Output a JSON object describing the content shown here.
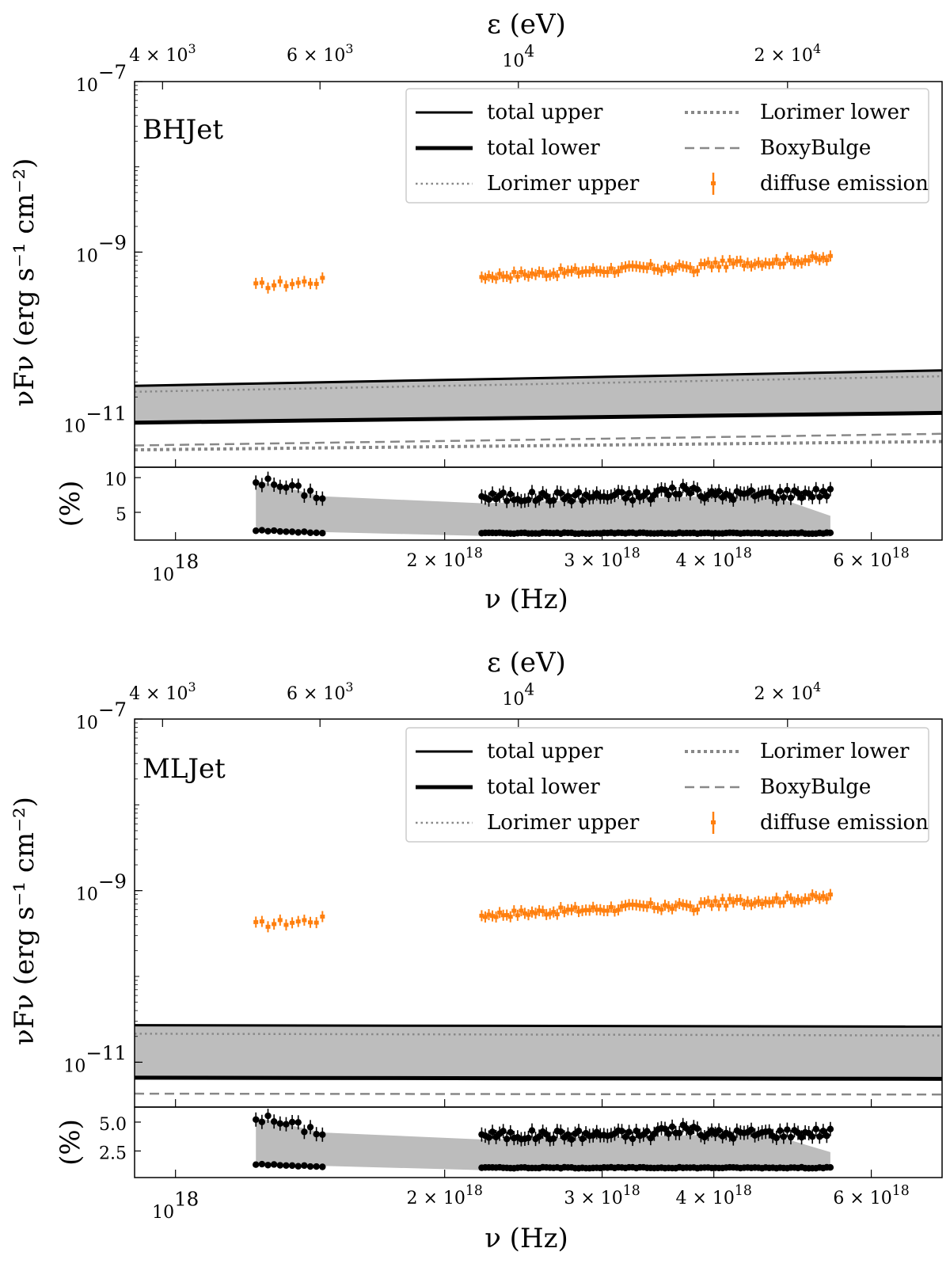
{
  "figure": {
    "top_axis_label": "ε (eV)",
    "bottom_axis_label": "ν (Hz)",
    "left_axis_label": "νFν (erg s⁻¹ cm⁻²)",
    "ratio_axis_label": "(%)",
    "colors": {
      "diffuse": "#ff7f0e",
      "band": "#bdbdbd",
      "lorimer": "#888888",
      "boxy": "#888888",
      "ratio_band": "#bcbcbc",
      "ratio_points": "#000000"
    }
  },
  "legend": {
    "total_upper": "total upper",
    "total_lower": "total lower",
    "lorimer_upper": "Lorimer upper",
    "lorimer_lower": "Lorimer lower",
    "boxybulge": "BoxyBulge",
    "diffuse": "diffuse emission"
  },
  "chart_data": [
    {
      "type": "line",
      "title": "BHJet",
      "xlabel": "ν (Hz)",
      "ylabel": "νFν (erg s⁻¹ cm⁻²)",
      "x_scale": "log",
      "y_scale": "log",
      "xlim": [
        9e+17,
        7.2e+18
      ],
      "ylim": [
        3e-12,
        1e-07
      ],
      "x_ticks": [
        {
          "value": 1e+18,
          "label": "10^18"
        },
        {
          "value": 2e+18,
          "label": "2 × 10^18"
        },
        {
          "value": 3e+18,
          "label": "3 × 10^18"
        },
        {
          "value": 4e+18,
          "label": "4 × 10^18"
        },
        {
          "value": 6e+18,
          "label": "6 × 10^18"
        }
      ],
      "top_ticks": [
        {
          "value_eV": 4000,
          "label": "4 × 10^3"
        },
        {
          "value_eV": 6000,
          "label": "6 × 10^3"
        },
        {
          "value_eV": 10000,
          "label": "10^4"
        },
        {
          "value_eV": 20000,
          "label": "2 × 10^4"
        }
      ],
      "y_ticks": [
        {
          "value": 1e-07,
          "label": "10^-7"
        },
        {
          "value": 1e-09,
          "label": "10^-9"
        },
        {
          "value": 1e-11,
          "label": "10^-11"
        }
      ],
      "series": [
        {
          "name": "total upper",
          "x": [
            9e+17,
            7.2e+18
          ],
          "y": [
            2.7e-11,
            4.1e-11
          ]
        },
        {
          "name": "total lower",
          "x": [
            9e+17,
            7.2e+18
          ],
          "y": [
            1e-11,
            1.3e-11
          ]
        },
        {
          "name": "Lorimer upper",
          "x": [
            9e+17,
            7.2e+18
          ],
          "y": [
            2.3e-11,
            3.5e-11
          ]
        },
        {
          "name": "Lorimer lower",
          "x": [
            9e+17,
            7.2e+18
          ],
          "y": [
            4.8e-12,
            6e-12
          ]
        },
        {
          "name": "BoxyBulge",
          "x": [
            9e+17,
            7.2e+18
          ],
          "y": [
            5.4e-12,
            7.4e-12
          ]
        }
      ],
      "diffuse_emission": {
        "seg1": {
          "x_start": 1.23e+18,
          "x_end": 1.46e+18,
          "count": 12,
          "y_start": 4e-10,
          "y_end": 4.6e-10
        },
        "seg2": {
          "x_start": 2.2e+18,
          "x_end": 5.4e+18,
          "count": 98,
          "y_start": 5.2e-10,
          "y_end": 8.4e-10
        }
      },
      "ratio": {
        "ylabel": "(%)",
        "ylim": [
          1.0,
          11.5
        ],
        "y_ticks": [
          {
            "value": 5,
            "label": "5"
          },
          {
            "value": 10,
            "label": "10"
          }
        ],
        "upper_seg1_start": 9.6,
        "upper_seg1_end": 7.3,
        "upper_seg2_start": 6.3,
        "upper_seg2_end": 4.5,
        "upper_seg2_mid": 7.6,
        "lower_seg1": 2.4,
        "lower_seg2": 2.0
      }
    },
    {
      "type": "line",
      "title": "MLJet",
      "xlabel": "ν (Hz)",
      "ylabel": "νFν (erg s⁻¹ cm⁻²)",
      "x_scale": "log",
      "y_scale": "log",
      "xlim": [
        9e+17,
        7.2e+18
      ],
      "ylim": [
        3e-12,
        1e-07
      ],
      "x_ticks": [
        {
          "value": 1e+18,
          "label": "10^18"
        },
        {
          "value": 2e+18,
          "label": "2 × 10^18"
        },
        {
          "value": 3e+18,
          "label": "3 × 10^18"
        },
        {
          "value": 4e+18,
          "label": "4 × 10^18"
        },
        {
          "value": 6e+18,
          "label": "6 × 10^18"
        }
      ],
      "top_ticks": [
        {
          "value_eV": 4000,
          "label": "4 × 10^3"
        },
        {
          "value_eV": 6000,
          "label": "6 × 10^3"
        },
        {
          "value_eV": 10000,
          "label": "10^4"
        },
        {
          "value_eV": 20000,
          "label": "2 × 10^4"
        }
      ],
      "y_ticks": [
        {
          "value": 1e-07,
          "label": "10^-7"
        },
        {
          "value": 1e-09,
          "label": "10^-9"
        },
        {
          "value": 1e-11,
          "label": "10^-11"
        }
      ],
      "series": [
        {
          "name": "total upper",
          "x": [
            9e+17,
            7.2e+18
          ],
          "y": [
            2.7e-11,
            2.6e-11
          ]
        },
        {
          "name": "total lower",
          "x": [
            9e+17,
            7.2e+18
          ],
          "y": [
            6.6e-12,
            6.4e-12
          ]
        },
        {
          "name": "Lorimer upper",
          "x": [
            9e+17,
            7.2e+18
          ],
          "y": [
            2.15e-11,
            2.05e-11
          ]
        },
        {
          "name": "BoxyBulge",
          "x": [
            9e+17,
            7.2e+18
          ],
          "y": [
            4.3e-12,
            4.2e-12
          ]
        }
      ],
      "diffuse_emission": {
        "seg1": {
          "x_start": 1.23e+18,
          "x_end": 1.46e+18,
          "count": 12,
          "y_start": 4e-10,
          "y_end": 4.6e-10
        },
        "seg2": {
          "x_start": 2.2e+18,
          "x_end": 5.4e+18,
          "count": 98,
          "y_start": 5.2e-10,
          "y_end": 8.4e-10
        }
      },
      "ratio": {
        "ylabel": "(%)",
        "ylim": [
          0.2,
          6.3
        ],
        "y_ticks": [
          {
            "value": 2.5,
            "label": "2.5"
          },
          {
            "value": 5.0,
            "label": "5.0"
          }
        ],
        "upper_seg1_start": 5.4,
        "upper_seg1_end": 4.1,
        "upper_seg2_start": 3.5,
        "upper_seg2_end": 2.4,
        "upper_seg2_mid": 4.0,
        "lower_seg1": 1.35,
        "lower_seg2": 1.05
      }
    }
  ]
}
